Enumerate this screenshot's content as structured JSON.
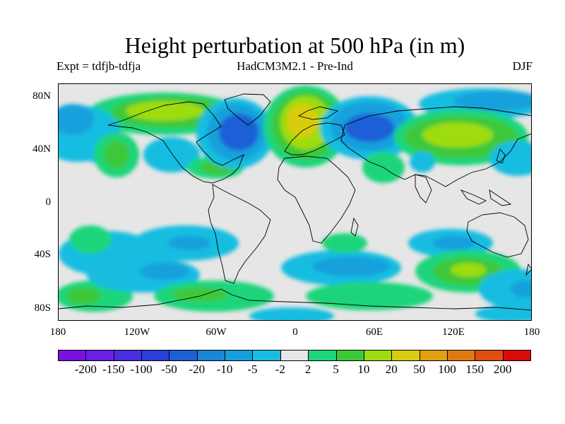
{
  "title": "Height perturbation at 500 hPa (in m)",
  "subtitle_left": "Expt = tdfjb-tdfja",
  "subtitle_center": "HadCM3M2.1 - Pre-Ind",
  "subtitle_right": "DJF",
  "lat_labels": [
    "80N",
    "40N",
    "0",
    "40S",
    "80S"
  ],
  "lon_labels": [
    "180",
    "120W",
    "60W",
    "0",
    "60E",
    "120E",
    "180"
  ],
  "legend": {
    "colors": [
      "#7a10e0",
      "#6a1ee6",
      "#4a2de0",
      "#2a3ed8",
      "#1f5fd6",
      "#1a86d6",
      "#15a0dc",
      "#18bde0",
      "#e6e6e6",
      "#1ed57a",
      "#3dc83a",
      "#9edc10",
      "#d8cc10",
      "#e0a010",
      "#e07a10",
      "#e04e10",
      "#d80a0a"
    ],
    "labels": [
      "-200",
      "-150",
      "-100",
      "-50",
      "-20",
      "-10",
      "-5",
      "-2",
      "2",
      "5",
      "10",
      "20",
      "50",
      "100",
      "150",
      "200"
    ]
  },
  "colors": {
    "missing": "#e6e6e6",
    "coast": "#000000"
  }
}
